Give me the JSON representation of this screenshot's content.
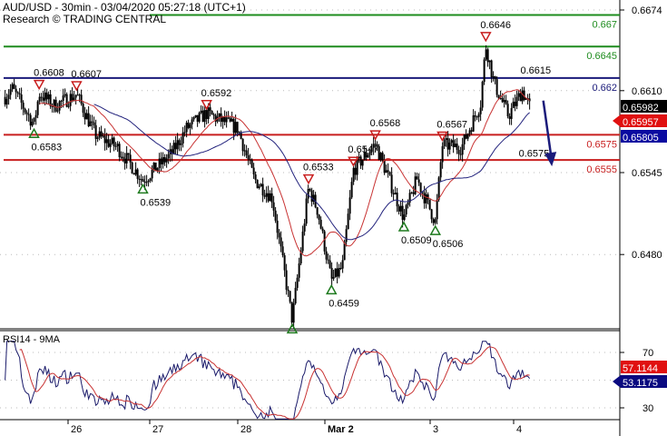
{
  "header": {
    "title": "AUD/USD - 30min - 03/04/2020 05:27:18 (UTC+1)",
    "source": "Research © TRADING CENTRAL"
  },
  "chart_data": {
    "type": "candlestick",
    "symbol": "AUD/USD",
    "timeframe": "30min",
    "y_axis": {
      "range": [
        0.642,
        0.6684
      ],
      "ticks": [
        "0.6674",
        "0.6610",
        "0.6545",
        "0.6480"
      ]
    },
    "x_axis": {
      "ticks": [
        "26",
        "27",
        "28",
        "Mar 2",
        "3",
        "4"
      ]
    },
    "grid": true,
    "price_path": [
      [
        "02-25 05:30",
        0.6605
      ],
      [
        "02-25 07:30",
        0.6612
      ],
      [
        "02-25 14:00",
        0.6583
      ],
      [
        "02-25 15:30",
        0.6608
      ],
      [
        "02-25 20:00",
        0.6598
      ],
      [
        "02-26 02:30",
        0.6607
      ],
      [
        "02-26 08:00",
        0.6575
      ],
      [
        "02-26 14:30",
        0.6565
      ],
      [
        "02-26 22:00",
        0.6539
      ],
      [
        "02-27 06:00",
        0.656
      ],
      [
        "02-27 10:00",
        0.658
      ],
      [
        "02-27 15:30",
        0.6592
      ],
      [
        "02-28 00:00",
        0.658
      ],
      [
        "02-28 04:30",
        0.654
      ],
      [
        "02-28 09:30",
        0.6525
      ],
      [
        "02-28 15:00",
        0.6428
      ],
      [
        "02-28 19:30",
        0.6533
      ],
      [
        "02-28 22:00",
        0.6515
      ],
      [
        "03-02 01:30",
        0.6459
      ],
      [
        "03-02 04:00",
        0.647
      ],
      [
        "03-02 06:30",
        0.6547
      ],
      [
        "03-02 11:30",
        0.6568
      ],
      [
        "03-02 18:00",
        0.6509
      ],
      [
        "03-02 21:00",
        0.654
      ],
      [
        "03-03 01:30",
        0.6506
      ],
      [
        "03-03 03:30",
        0.6567
      ],
      [
        "03-03 09:00",
        0.6565
      ],
      [
        "03-03 14:30",
        0.66
      ],
      [
        "03-03 16:00",
        0.6646
      ],
      [
        "03-03 18:30",
        0.6615
      ],
      [
        "03-03 22:30",
        0.659
      ],
      [
        "03-04 02:30",
        0.661
      ],
      [
        "03-04 05:00",
        0.6595
      ]
    ],
    "levels": [
      {
        "value": "0.667",
        "price": 0.667,
        "color": "#1e8c1e",
        "role": "resistance"
      },
      {
        "value": "0.6645",
        "price": 0.6645,
        "color": "#1e8c1e",
        "role": "resistance"
      },
      {
        "value": "0.662",
        "price": 0.662,
        "color": "#1a1a7a",
        "role": "pivot"
      },
      {
        "value": "0.6575",
        "price": 0.6575,
        "color": "#c81e1e",
        "role": "support"
      },
      {
        "value": "0.6555",
        "price": 0.6555,
        "color": "#c81e1e",
        "role": "support"
      }
    ],
    "annotations": [
      {
        "text": "0.6608",
        "time": "02-25 15:30",
        "price": 0.6608,
        "marker": "down"
      },
      {
        "text": "0.6607",
        "time": "02-26 02:30",
        "price": 0.6607,
        "marker": "down"
      },
      {
        "text": "0.6583",
        "time": "02-25 14:00",
        "price": 0.6583,
        "marker": "up"
      },
      {
        "text": "0.6539",
        "time": "02-26 22:00",
        "price": 0.6539,
        "marker": "up"
      },
      {
        "text": "0.6592",
        "time": "02-27 15:30",
        "price": 0.6592,
        "marker": "down"
      },
      {
        "text": "0.6533",
        "time": "02-28 19:30",
        "price": 0.6533,
        "marker": "down"
      },
      {
        "text": "",
        "time": "02-28 15:00",
        "price": 0.6428,
        "marker": "up"
      },
      {
        "text": "0.6459",
        "time": "03-02 01:30",
        "price": 0.6459,
        "marker": "up"
      },
      {
        "text": "0.6547",
        "time": "03-02 06:30",
        "price": 0.6547,
        "marker": "down"
      },
      {
        "text": "0.6568",
        "time": "03-02 11:30",
        "price": 0.6568,
        "marker": "down"
      },
      {
        "text": "0.6509",
        "time": "03-02 18:00",
        "price": 0.6509,
        "marker": "up"
      },
      {
        "text": "0.6506",
        "time": "03-03 01:30",
        "price": 0.6506,
        "marker": "up"
      },
      {
        "text": "0.6567",
        "time": "03-03 03:30",
        "price": 0.6567,
        "marker": "down"
      },
      {
        "text": "0.6646",
        "time": "03-03 16:00",
        "price": 0.6646,
        "marker": "down"
      },
      {
        "text": "0.6615",
        "time": "03-04 03:00",
        "price": 0.6615,
        "marker": "none"
      },
      {
        "text": "0.6575",
        "time": "03-04 02:30",
        "price": 0.6575,
        "marker": "none"
      }
    ],
    "forecast_arrow": {
      "from": [
        "03-04 08:00",
        0.6605
      ],
      "to": [
        "03-04 11:00",
        0.6555
      ],
      "color": "#1a1a7a"
    },
    "price_badges": [
      {
        "text": "0.65982",
        "bg": "#000000",
        "fg": "#ffffff",
        "price": 0.661
      },
      {
        "text": "0.65957",
        "bg": "#e01010",
        "fg": "#ffffff",
        "price": 0.6598
      },
      {
        "text": "0.65805",
        "bg": "#0a0aa0",
        "fg": "#ffffff",
        "price": 0.6587
      }
    ],
    "moving_averages": [
      {
        "color": "#c83232"
      },
      {
        "color": "#23237d"
      }
    ],
    "rsi": {
      "label": "RSI14 - 9MA",
      "range": [
        20,
        80
      ],
      "ticks": [
        "70",
        "30"
      ],
      "badges": [
        {
          "text": "57.1144",
          "bg": "#e01010",
          "fg": "#ffffff",
          "value": 57.1144
        },
        {
          "text": "53.1175",
          "bg": "#0a0a80",
          "fg": "#ffffff",
          "value": 53.1175
        }
      ],
      "line_colors": [
        "#1a1a6a",
        "#c83232"
      ]
    }
  }
}
